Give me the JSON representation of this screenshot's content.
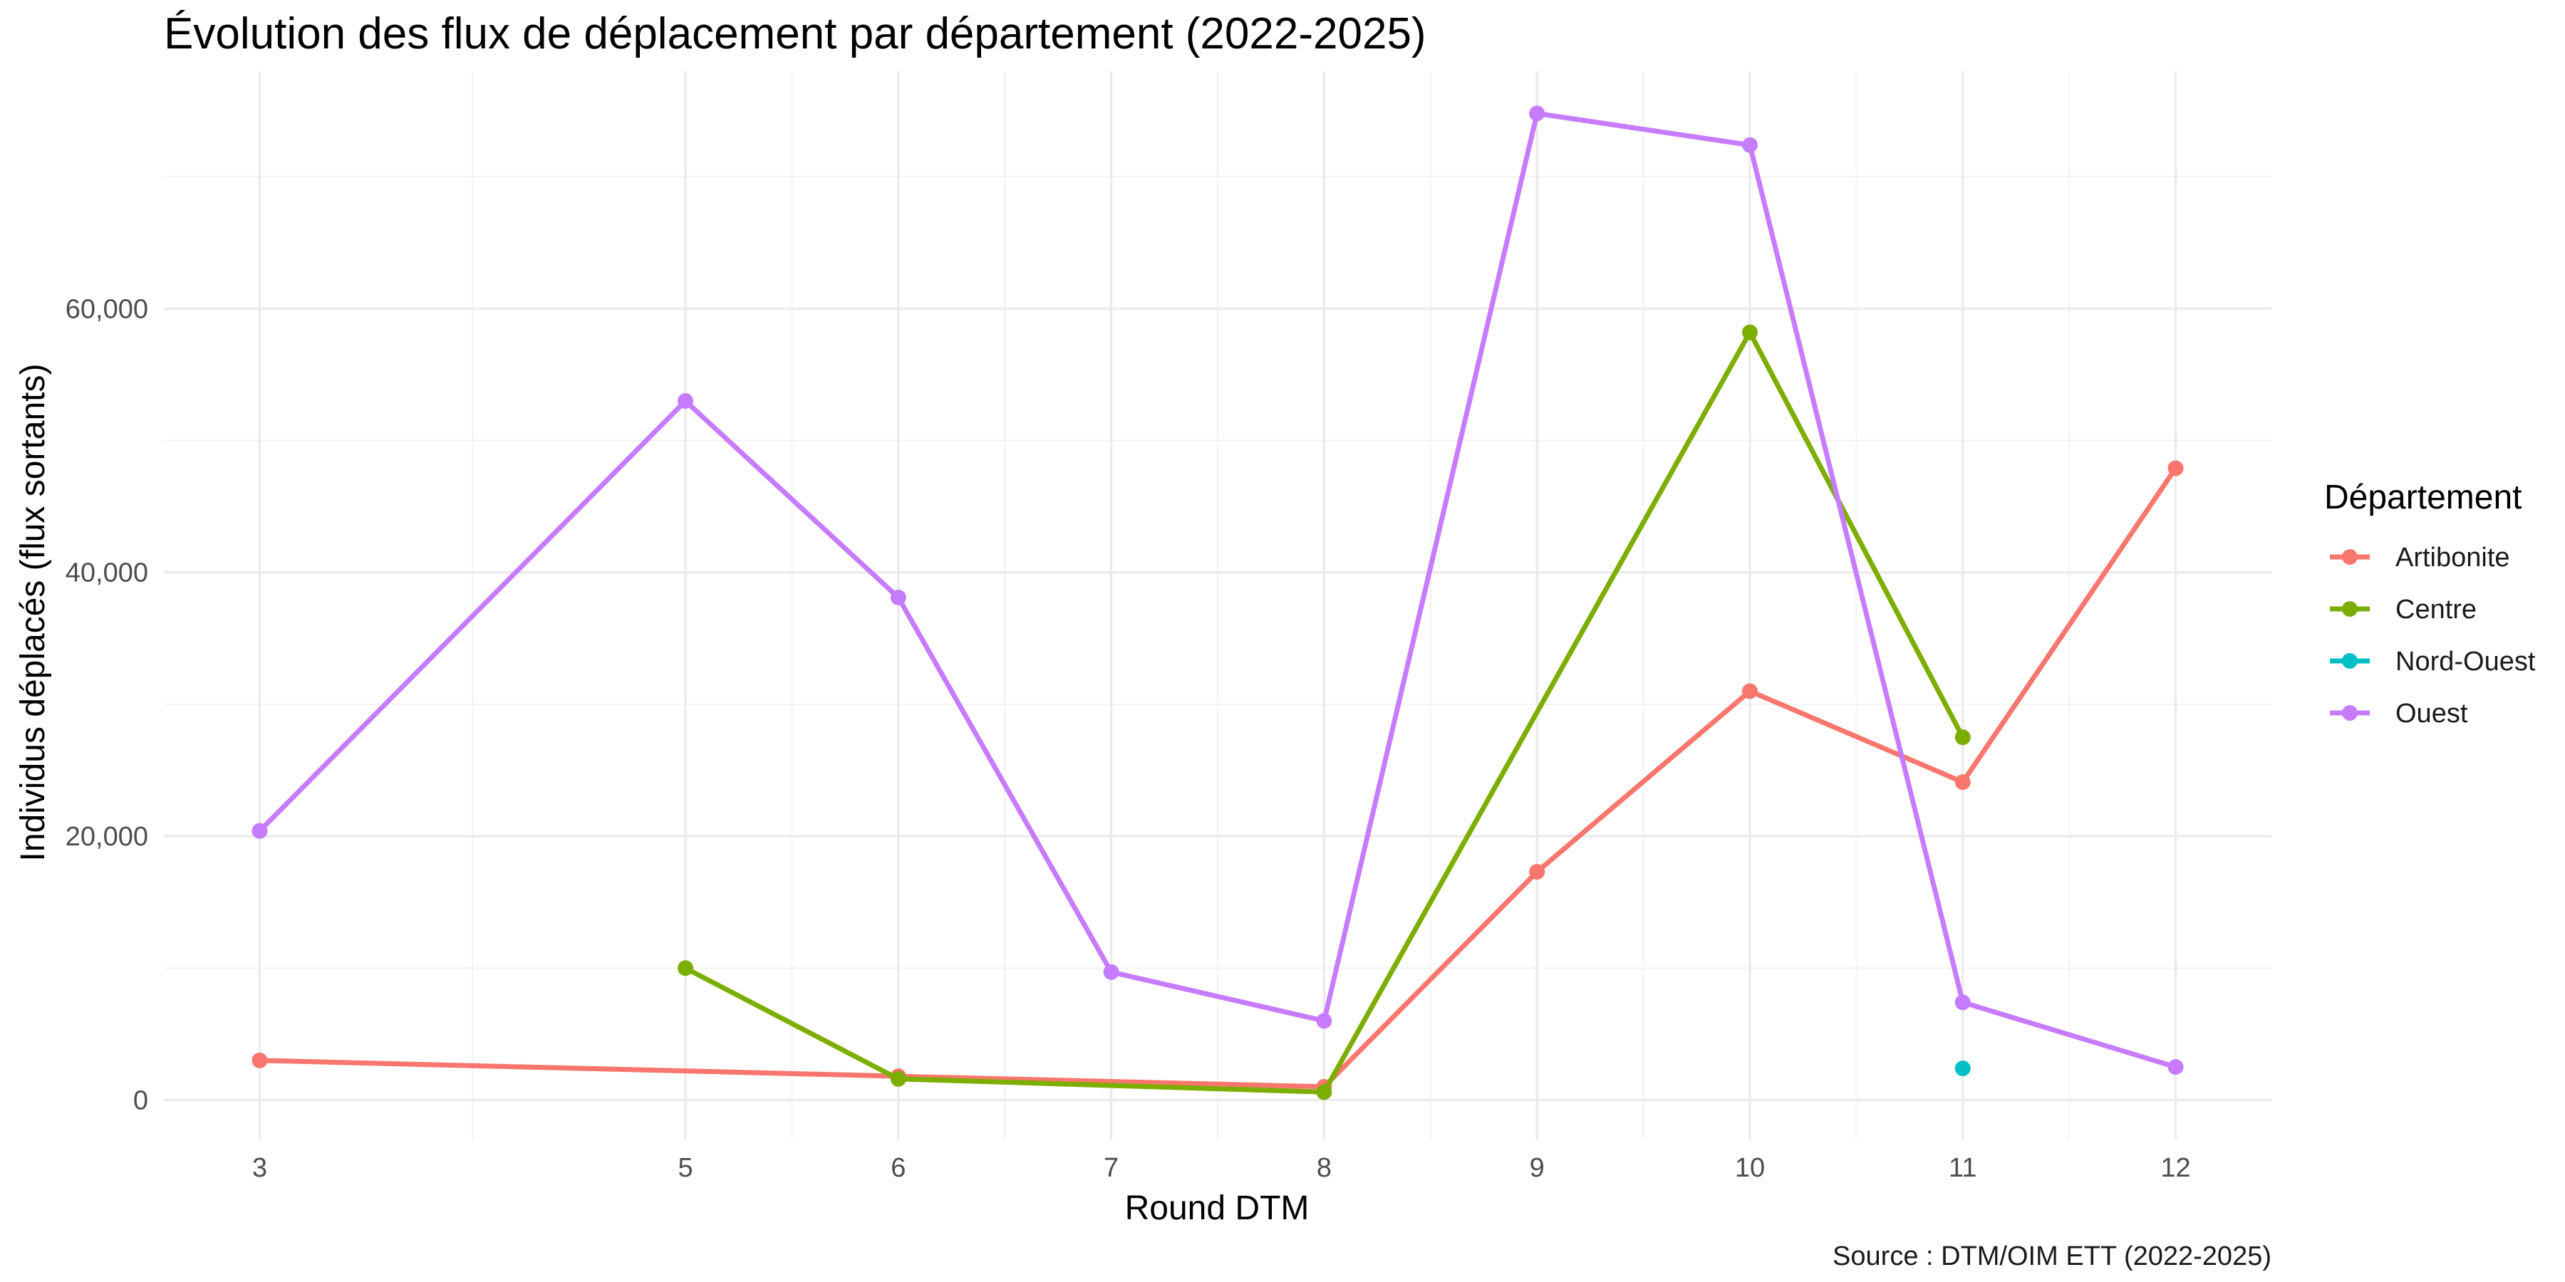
{
  "chart_data": {
    "type": "line",
    "title": "Évolution des flux de déplacement par département (2022-2025)",
    "xlabel": "Round DTM",
    "ylabel": "Individus déplacés (flux sortants)",
    "caption": "Source : DTM/OIM ETT (2022-2025)",
    "x_ticks": [
      3,
      5,
      6,
      7,
      8,
      9,
      10,
      11,
      12
    ],
    "y_ticks": [
      0,
      20000,
      40000,
      60000
    ],
    "y_tick_labels": [
      "0",
      "20,000",
      "40,000",
      "60,000"
    ],
    "xlim": [
      2.55,
      12.45
    ],
    "ylim": [
      -3000,
      78000
    ],
    "grid": true,
    "legend": {
      "title": "Département",
      "position": "right"
    },
    "series": [
      {
        "name": "Artibonite",
        "color": "#F8766D",
        "points": [
          [
            3,
            3000
          ],
          [
            6,
            1800
          ],
          [
            8,
            1000
          ],
          [
            9,
            17300
          ],
          [
            10,
            31000
          ],
          [
            11,
            24100
          ],
          [
            12,
            47900
          ]
        ]
      },
      {
        "name": "Centre",
        "color": "#7CAE00",
        "points": [
          [
            5,
            10000
          ],
          [
            6,
            1600
          ],
          [
            8,
            600
          ],
          [
            10,
            58200
          ],
          [
            11,
            27500
          ]
        ]
      },
      {
        "name": "Nord-Ouest",
        "color": "#00BFC4",
        "points": [
          [
            11,
            2400
          ]
        ]
      },
      {
        "name": "Ouest",
        "color": "#C77CFF",
        "points": [
          [
            3,
            20400
          ],
          [
            5,
            53000
          ],
          [
            6,
            38100
          ],
          [
            7,
            9700
          ],
          [
            8,
            6000
          ],
          [
            9,
            74800
          ],
          [
            10,
            72400
          ],
          [
            11,
            7400
          ],
          [
            12,
            2500
          ]
        ]
      }
    ]
  }
}
